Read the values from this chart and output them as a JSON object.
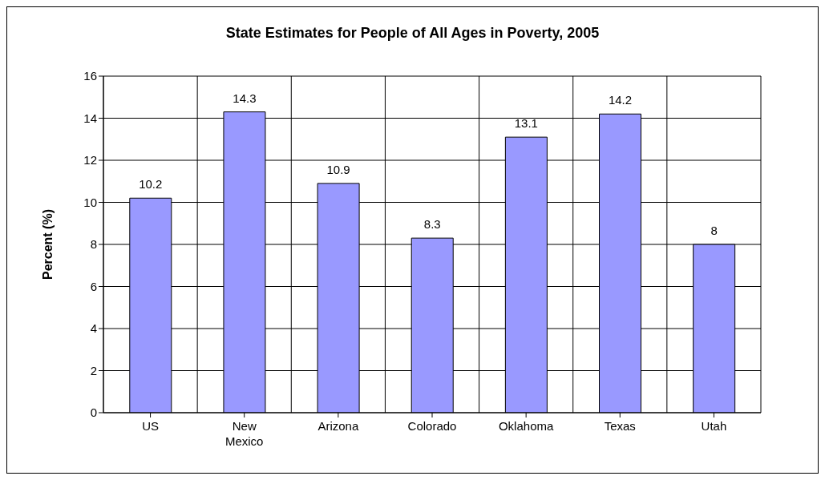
{
  "chart_data": {
    "type": "bar",
    "title": "State Estimates for People of All Ages in Poverty, 2005",
    "ylabel": "Percent (%)",
    "categories": [
      "US",
      "New Mexico",
      "Arizona",
      "Colorado",
      "Oklahoma",
      "Texas",
      "Utah"
    ],
    "values": [
      10.2,
      14.3,
      10.9,
      8.3,
      13.1,
      14.2,
      8
    ],
    "color": "#9999ff",
    "ylim": [
      0,
      16
    ],
    "yticks": [
      0,
      2,
      4,
      6,
      8,
      10,
      12,
      14,
      16
    ],
    "grid": true,
    "data_labels": true
  }
}
